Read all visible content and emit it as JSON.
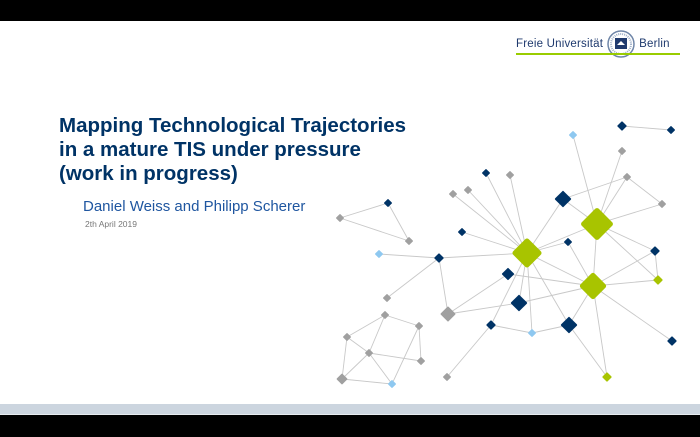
{
  "slide": {
    "logo": {
      "left_text": "Freie Universität",
      "right_text": "Berlin",
      "accent_color": "#99cc00"
    },
    "title_lines": [
      "Mapping Technological Trajectories",
      "in a mature TIS under pressure",
      "(work in progress)"
    ],
    "authors": "Daniel Weiss and Philipp Scherer",
    "date": "2th April 2019"
  },
  "network_graphic": {
    "node_colors": {
      "green": "#a8c400",
      "navy": "#003366",
      "gray": "#a0a0a0",
      "lightblue": "#8ec8f0"
    },
    "edge_color": "#c8c8c8"
  }
}
